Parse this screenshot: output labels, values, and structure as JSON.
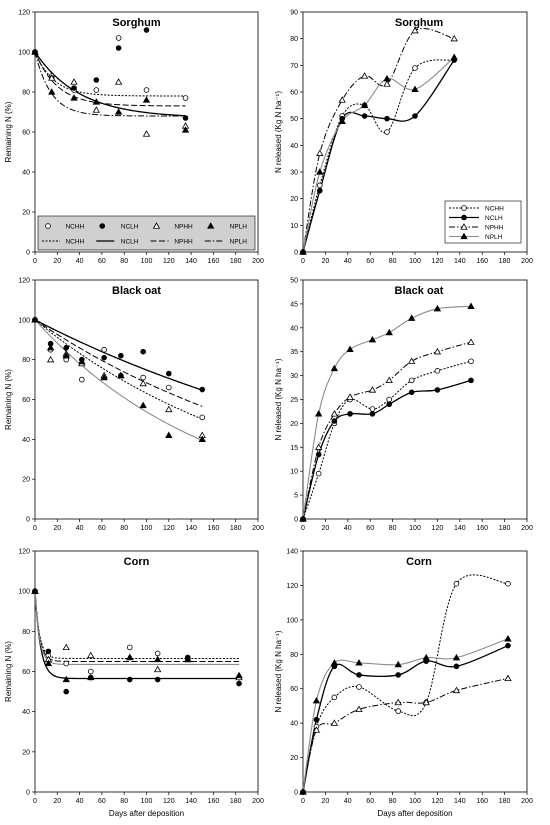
{
  "chart_data": [
    {
      "id": "sorghum_remaining",
      "type": "scatter",
      "title": "Sorghum",
      "xlabel": "",
      "ylabel": "Remaining N (%)",
      "xlim": [
        0,
        200
      ],
      "xticks": [
        0,
        20,
        40,
        60,
        80,
        100,
        120,
        140,
        160,
        180,
        200
      ],
      "ylim": [
        0,
        120
      ],
      "yticks": [
        0,
        20,
        40,
        60,
        80,
        100,
        120
      ],
      "legend": {
        "position": "inside-bottom",
        "marker_labels": [
          "NCHH",
          "NCLH",
          "NPHH",
          "NPLH"
        ],
        "line_labels": [
          "NCHH",
          "NCLH",
          "NPHH",
          "NPLH"
        ]
      },
      "series": [
        {
          "name": "NCHH",
          "marker": "circle-open",
          "x": [
            0,
            15,
            35,
            55,
            75,
            100,
            135
          ],
          "y": [
            100,
            88,
            81,
            81,
            107,
            81,
            77
          ]
        },
        {
          "name": "NCLH",
          "marker": "circle-filled",
          "x": [
            0,
            15,
            35,
            55,
            75,
            100,
            135
          ],
          "y": [
            100,
            87,
            82,
            86,
            102,
            111,
            67
          ]
        },
        {
          "name": "NPHH",
          "marker": "triangle-open",
          "x": [
            0,
            15,
            35,
            55,
            75,
            100,
            135
          ],
          "y": [
            100,
            87,
            85,
            71,
            85,
            59,
            63
          ]
        },
        {
          "name": "NPLH",
          "marker": "triangle-filled",
          "x": [
            0,
            15,
            35,
            55,
            75,
            100,
            135
          ],
          "y": [
            100,
            80,
            77,
            75,
            70,
            76,
            61
          ]
        }
      ],
      "fits": [
        {
          "name": "NCHH",
          "style": "short-dash",
          "asymptote": 78,
          "k": 0.06,
          "xmax": 135
        },
        {
          "name": "NCLH",
          "style": "solid",
          "asymptote": 67,
          "k": 0.025,
          "xmax": 135
        },
        {
          "name": "NPHH",
          "style": "long-dash",
          "asymptote": 73,
          "k": 0.05,
          "xmax": 135
        },
        {
          "name": "NPLH",
          "style": "dash-dot",
          "asymptote": 68,
          "k": 0.07,
          "xmax": 135
        }
      ]
    },
    {
      "id": "sorghum_released",
      "type": "line",
      "title": "Sorghum",
      "xlabel": "",
      "ylabel": "N released  (Kg N ha⁻¹)",
      "xlim": [
        0,
        200
      ],
      "xticks": [
        0,
        20,
        40,
        60,
        80,
        100,
        120,
        140,
        160,
        180,
        200
      ],
      "ylim": [
        0,
        90
      ],
      "yticks": [
        0,
        10,
        20,
        30,
        40,
        50,
        60,
        70,
        80,
        90
      ],
      "legend": {
        "position": "inside-bottom-right",
        "labels": [
          "NCHH",
          "NCLH",
          "NPHH",
          "NPLH"
        ]
      },
      "series": [
        {
          "name": "NCHH",
          "marker": "circle-open",
          "style": "short-dash",
          "x": [
            0,
            15,
            35,
            55,
            75,
            100,
            135
          ],
          "y": [
            0,
            25,
            51,
            55,
            45,
            69,
            72
          ]
        },
        {
          "name": "NCLH",
          "marker": "circle-filled",
          "style": "solid",
          "x": [
            0,
            15,
            35,
            55,
            75,
            100,
            135
          ],
          "y": [
            0,
            23,
            50,
            51,
            50,
            51,
            72
          ]
        },
        {
          "name": "NPHH",
          "marker": "triangle-open",
          "style": "dash-dot",
          "x": [
            0,
            15,
            35,
            55,
            75,
            100,
            135
          ],
          "y": [
            0,
            37,
            57,
            66,
            63,
            83,
            80
          ]
        },
        {
          "name": "NPLH",
          "marker": "triangle-filled",
          "style": "gray",
          "x": [
            0,
            15,
            35,
            55,
            75,
            100,
            135
          ],
          "y": [
            0,
            30,
            49,
            55,
            65,
            61,
            73
          ]
        }
      ]
    },
    {
      "id": "blackoat_remaining",
      "type": "scatter",
      "title": "Black oat",
      "xlabel": "",
      "ylabel": "Remaining N (%)",
      "xlim": [
        0,
        200
      ],
      "xticks": [
        0,
        20,
        40,
        60,
        80,
        100,
        120,
        140,
        160,
        180,
        200
      ],
      "ylim": [
        0,
        120
      ],
      "yticks": [
        0,
        20,
        40,
        60,
        80,
        100,
        120
      ],
      "series": [
        {
          "name": "NCHH",
          "marker": "circle-open",
          "x": [
            0,
            14,
            28,
            42,
            62,
            77,
            97,
            120,
            150
          ],
          "y": [
            100,
            85,
            80,
            70,
            85,
            72,
            71,
            66,
            51
          ]
        },
        {
          "name": "NCLH",
          "marker": "circle-filled",
          "x": [
            0,
            14,
            28,
            42,
            62,
            77,
            97,
            120,
            150
          ],
          "y": [
            100,
            88,
            86,
            80,
            81,
            82,
            84,
            73,
            65
          ]
        },
        {
          "name": "NPHH",
          "marker": "triangle-open",
          "x": [
            0,
            14,
            28,
            42,
            62,
            77,
            97,
            120,
            150
          ],
          "y": [
            100,
            80,
            83,
            78,
            72,
            72,
            68,
            55,
            42
          ]
        },
        {
          "name": "NPLH",
          "marker": "triangle-filled",
          "x": [
            0,
            14,
            28,
            42,
            62,
            77,
            97,
            120,
            150
          ],
          "y": [
            100,
            86,
            82,
            79,
            71,
            72,
            57,
            42,
            40
          ]
        }
      ],
      "fits": [
        {
          "name": "NCHH",
          "style": "short-dash",
          "asymptote": 0,
          "k": 0.0046,
          "xmax": 150
        },
        {
          "name": "NCLH",
          "style": "solid",
          "asymptote": 0,
          "k": 0.0029,
          "xmax": 150
        },
        {
          "name": "NPHH",
          "style": "long-dash",
          "asymptote": 0,
          "k": 0.0038,
          "xmax": 150
        },
        {
          "name": "NPLH",
          "style": "gray",
          "asymptote": 0,
          "k": 0.0062,
          "xmax": 150
        }
      ]
    },
    {
      "id": "blackoat_released",
      "type": "line",
      "title": "Black oat",
      "xlabel": "",
      "ylabel": "N released  (Kg N ha⁻¹)",
      "xlim": [
        0,
        200
      ],
      "xticks": [
        0,
        20,
        40,
        60,
        80,
        100,
        120,
        140,
        160,
        180,
        200
      ],
      "ylim": [
        0,
        50
      ],
      "yticks": [
        0,
        5,
        10,
        15,
        20,
        25,
        30,
        35,
        40,
        45,
        50
      ],
      "series": [
        {
          "name": "NCHH",
          "marker": "circle-open",
          "style": "short-dash",
          "x": [
            0,
            14,
            28,
            42,
            62,
            77,
            97,
            120,
            150
          ],
          "y": [
            0,
            9.5,
            20,
            25,
            23,
            25,
            29,
            31,
            33
          ]
        },
        {
          "name": "NCLH",
          "marker": "circle-filled",
          "style": "solid",
          "x": [
            0,
            14,
            28,
            42,
            62,
            77,
            97,
            120,
            150
          ],
          "y": [
            0,
            13.5,
            20.5,
            22,
            22,
            24,
            26.5,
            27,
            29
          ]
        },
        {
          "name": "NPHH",
          "marker": "triangle-open",
          "style": "dash-dot",
          "x": [
            0,
            14,
            28,
            42,
            62,
            77,
            97,
            120,
            150
          ],
          "y": [
            0,
            15,
            22,
            25.5,
            27,
            29,
            33,
            35,
            37
          ]
        },
        {
          "name": "NPLH",
          "marker": "triangle-filled",
          "style": "gray",
          "x": [
            0,
            14,
            28,
            42,
            62,
            77,
            97,
            120,
            150
          ],
          "y": [
            0,
            22,
            31.5,
            35.5,
            37.5,
            39,
            42,
            44,
            44.5
          ]
        }
      ]
    },
    {
      "id": "corn_remaining",
      "type": "scatter",
      "title": "Corn",
      "xlabel": "Days after deposition",
      "ylabel": "Remaining N (%)",
      "xlim": [
        0,
        200
      ],
      "xticks": [
        0,
        20,
        40,
        60,
        80,
        100,
        120,
        140,
        160,
        180,
        200
      ],
      "ylim": [
        0,
        120
      ],
      "yticks": [
        0,
        20,
        40,
        60,
        80,
        100,
        120
      ],
      "series": [
        {
          "name": "NCHH",
          "marker": "circle-open",
          "x": [
            0,
            12,
            28,
            50,
            85,
            110,
            137,
            183
          ],
          "y": [
            100,
            68,
            64,
            60,
            72,
            69,
            66,
            57
          ]
        },
        {
          "name": "NCLH",
          "marker": "circle-filled",
          "x": [
            0,
            12,
            28,
            50,
            85,
            110,
            137,
            183
          ],
          "y": [
            100,
            70,
            50,
            57,
            56,
            56,
            67,
            54
          ]
        },
        {
          "name": "NPHH",
          "marker": "triangle-open",
          "x": [
            0,
            12,
            28,
            50,
            85,
            110,
            137,
            183
          ],
          "y": [
            100,
            66,
            72,
            68,
            67,
            61,
            66,
            57
          ]
        },
        {
          "name": "NPLH",
          "marker": "triangle-filled",
          "x": [
            0,
            12,
            28,
            50,
            85,
            110,
            137,
            183
          ],
          "y": [
            100,
            64,
            56,
            57,
            67,
            66,
            66,
            58
          ]
        }
      ],
      "fits": [
        {
          "name": "NCHH",
          "style": "short-dash",
          "asymptote": 66.5,
          "k": 0.25,
          "xmax": 183
        },
        {
          "name": "NCLH",
          "style": "solid",
          "asymptote": 56.5,
          "k": 0.2,
          "xmax": 183
        },
        {
          "name": "NPHH",
          "style": "long-dash",
          "asymptote": 65,
          "k": 0.25,
          "xmax": 183
        },
        {
          "name": "NPLH",
          "style": "gray",
          "asymptote": 63.5,
          "k": 0.25,
          "xmax": 183
        }
      ]
    },
    {
      "id": "corn_released",
      "type": "line",
      "title": "Corn",
      "xlabel": "Days after deposition",
      "ylabel": "N released  (Kg N ha⁻¹)",
      "xlim": [
        0,
        200
      ],
      "xticks": [
        0,
        20,
        40,
        60,
        80,
        100,
        120,
        140,
        160,
        180,
        200
      ],
      "ylim": [
        0,
        140
      ],
      "yticks": [
        0,
        20,
        40,
        60,
        80,
        100,
        120,
        140
      ],
      "series": [
        {
          "name": "NCHH",
          "marker": "circle-open",
          "style": "short-dash",
          "x": [
            0,
            12,
            28,
            50,
            85,
            110,
            137,
            183
          ],
          "y": [
            0,
            38,
            55,
            61,
            47,
            52,
            121,
            121
          ]
        },
        {
          "name": "NCLH",
          "marker": "circle-filled",
          "style": "solid",
          "x": [
            0,
            12,
            28,
            50,
            85,
            110,
            137,
            183
          ],
          "y": [
            0,
            42,
            73,
            68,
            68,
            76,
            73,
            85
          ]
        },
        {
          "name": "NPHH",
          "marker": "triangle-open",
          "style": "dash-dot",
          "x": [
            0,
            12,
            28,
            50,
            85,
            110,
            137,
            183
          ],
          "y": [
            0,
            36,
            40,
            48,
            52,
            52,
            59,
            66
          ]
        },
        {
          "name": "NPLH",
          "marker": "triangle-filled",
          "style": "gray",
          "x": [
            0,
            12,
            28,
            50,
            85,
            110,
            137,
            183
          ],
          "y": [
            0,
            53,
            75,
            75,
            74,
            78,
            78,
            89
          ]
        }
      ]
    }
  ]
}
